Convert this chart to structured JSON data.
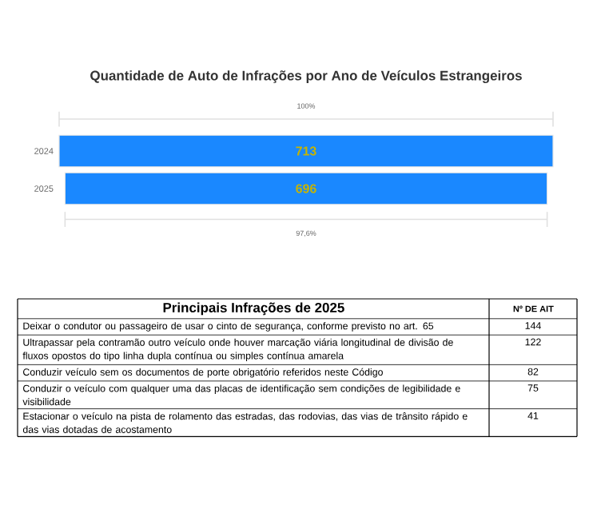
{
  "chart_data": [
    {
      "type": "other",
      "title": "Quantidade de Auto de Infrações por Ano de Veículos Estrangeiros",
      "categories": [
        "2024",
        "2025"
      ],
      "values": [
        713,
        696
      ],
      "color": "#1a88ff",
      "data_labels": true,
      "annotations": [
        "100%",
        "97,6%"
      ]
    },
    {
      "type": "other",
      "title": "Principais Infrações de 2025",
      "ylabel": "Nº DE AIT",
      "categories": [
        "Deixar o condutor ou passageiro de usar o cinto de segurança, conforme previsto no art. 65",
        "Ultrapassar pela contramão outro veículo onde houver marcação viária longitudinal de divisão de fluxos opostos do tipo linha dupla contínua ou simples contínua amarela",
        "Conduzir veículo sem os documentos de porte obrigatório referidos neste Código",
        "Conduzir o veículo com qualquer uma das placas de identificação sem condições de legibilidade e visibilidade",
        "Estacionar o veículo na pista de rolamento das estradas, das rodovias, das vias de trânsito rápido e das vias dotadas de acostamento"
      ],
      "values": [
        144,
        122,
        82,
        75,
        41
      ],
      "data_labels": true
    }
  ]
}
